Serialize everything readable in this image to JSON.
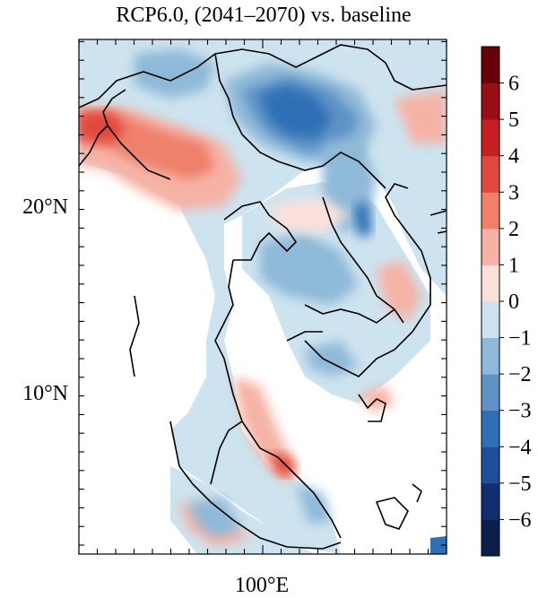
{
  "title": "RCP6.0, (2041–2070) vs. baseline",
  "map": {
    "lat_labels": [
      {
        "text": "20°N",
        "lat": 20
      },
      {
        "text": "10°N",
        "lat": 10
      }
    ],
    "lon_labels": [
      {
        "text": "100°E",
        "lon": 100
      }
    ],
    "extent": {
      "lon_min": 90,
      "lon_max": 110,
      "lat_min": 1,
      "lat_max": 29
    }
  },
  "colorbar": {
    "tick_labels": [
      "6",
      "5",
      "4",
      "3",
      "2",
      "1",
      "0",
      "−1",
      "−2",
      "−3",
      "−4",
      "−5",
      "−6"
    ],
    "bins": [
      {
        "lo": -7,
        "hi": -6,
        "color": "#0a1f4a"
      },
      {
        "lo": -6,
        "hi": -5,
        "color": "#112f6e"
      },
      {
        "lo": -5,
        "hi": -4,
        "color": "#1d4f99"
      },
      {
        "lo": -4,
        "hi": -3,
        "color": "#2f6fb6"
      },
      {
        "lo": -3,
        "hi": -2,
        "color": "#5f93c6"
      },
      {
        "lo": -2,
        "hi": -1,
        "color": "#8fb9d8"
      },
      {
        "lo": -1,
        "hi": 0,
        "color": "#cde3ef"
      },
      {
        "lo": 0,
        "hi": 1,
        "color": "#fbe1dc"
      },
      {
        "lo": 1,
        "hi": 2,
        "color": "#f6b3a5"
      },
      {
        "lo": 2,
        "hi": 3,
        "color": "#ef806a"
      },
      {
        "lo": 3,
        "hi": 4,
        "color": "#e04a3e"
      },
      {
        "lo": 4,
        "hi": 5,
        "color": "#c81f24"
      },
      {
        "lo": 5,
        "hi": 6,
        "color": "#9b0d15"
      },
      {
        "lo": 6,
        "hi": 7,
        "color": "#670008"
      }
    ]
  }
}
